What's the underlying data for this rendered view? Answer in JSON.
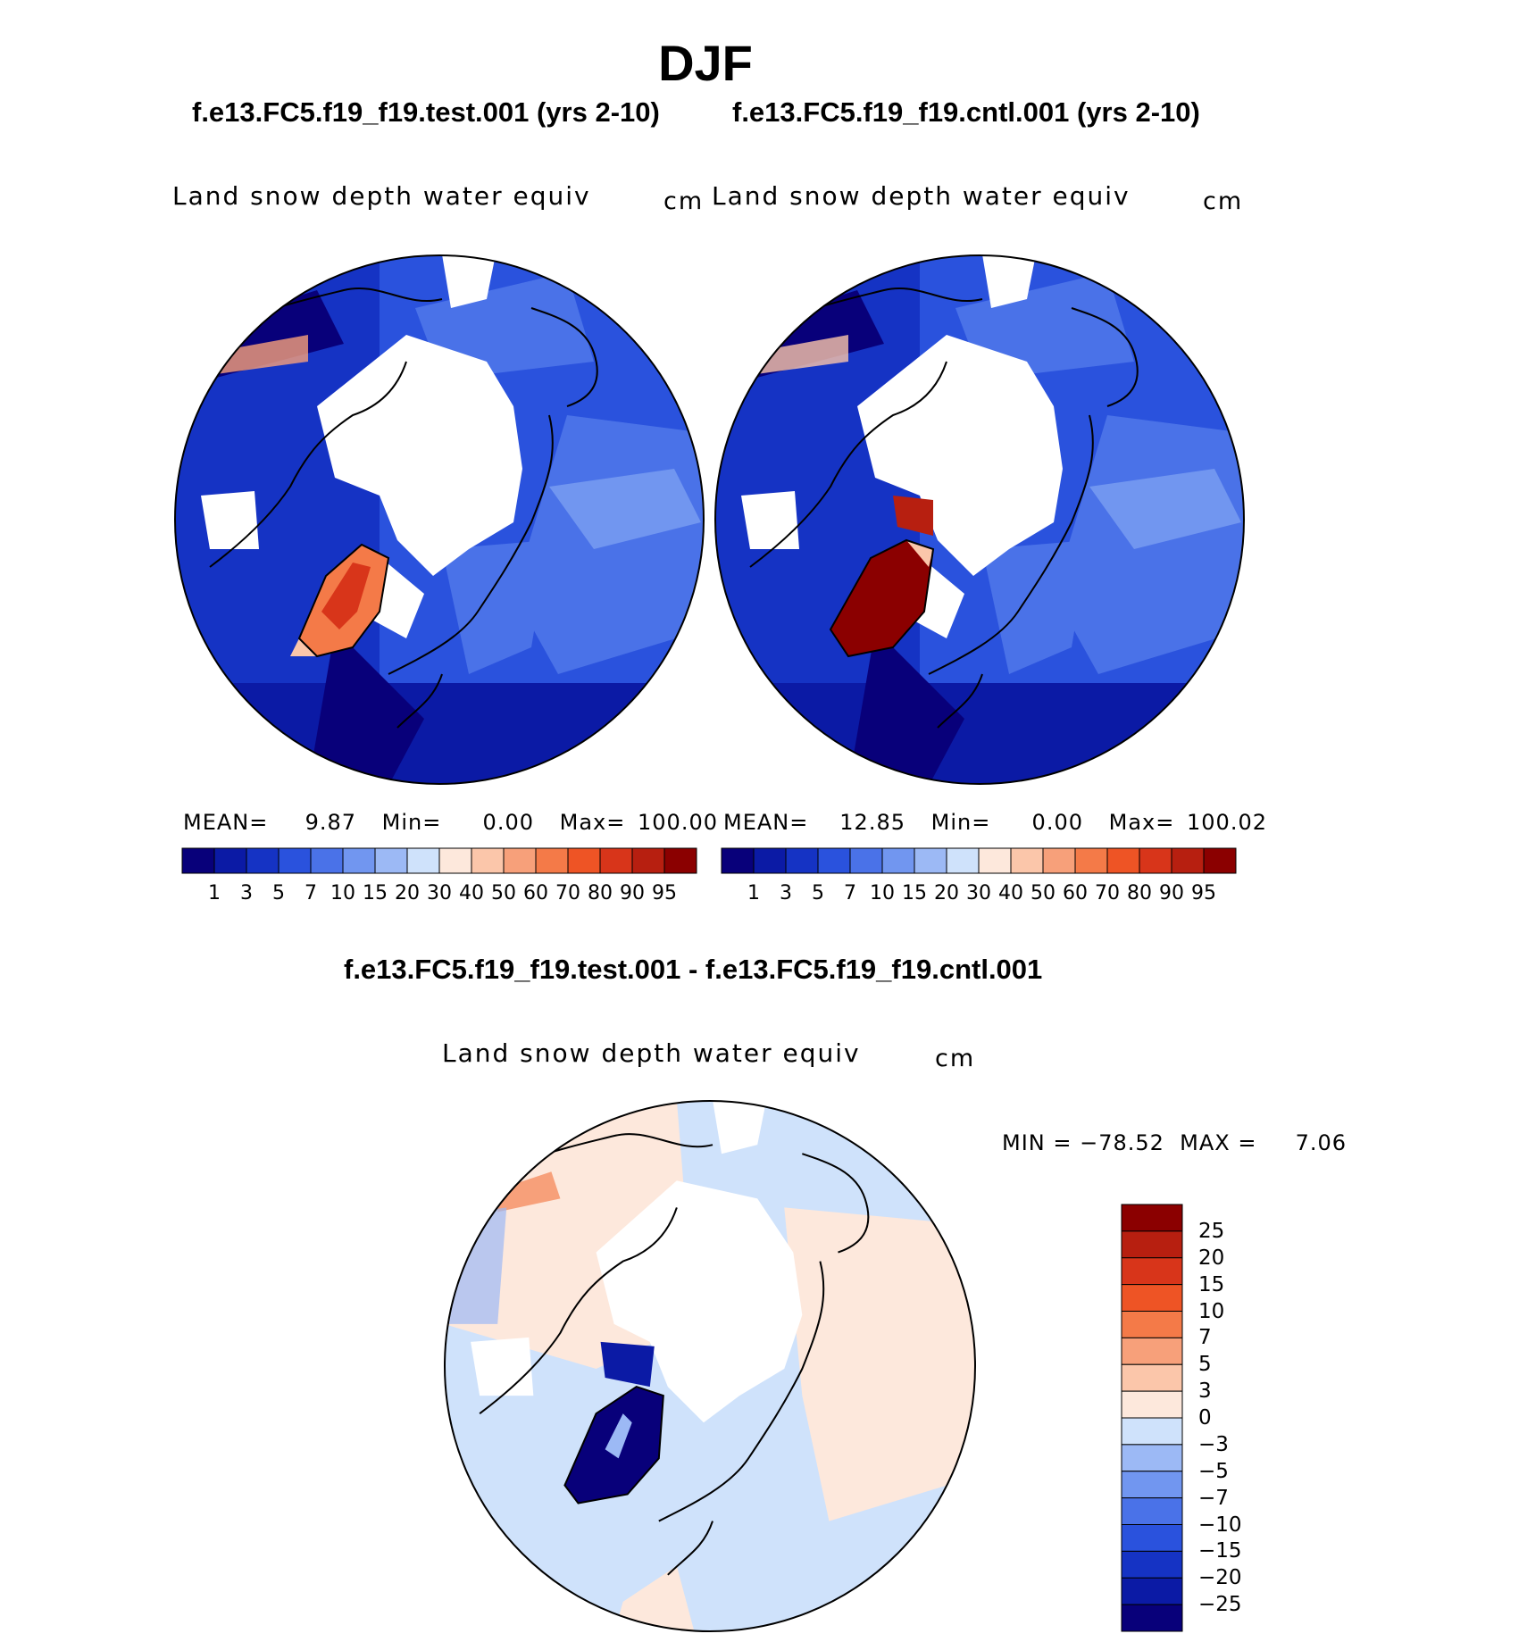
{
  "title": "DJF",
  "panels": [
    {
      "case": "f.e13.FC5.f19_f19.test.001 (yrs 2-10)",
      "variable": "Land snow depth water equiv",
      "units": "cm",
      "stats": {
        "mean_label": "MEAN=",
        "mean": "9.87",
        "min_label": "Min=",
        "min": "0.00",
        "max_label": "Max=",
        "max": "100.00"
      }
    },
    {
      "case": "f.e13.FC5.f19_f19.cntl.001 (yrs 2-10)",
      "variable": "Land snow depth water equiv",
      "units": "cm",
      "stats": {
        "mean_label": "MEAN=",
        "mean": "12.85",
        "min_label": "Min=",
        "min": "0.00",
        "max_label": "Max=",
        "max": "100.02"
      }
    }
  ],
  "abs_colorbar": {
    "colors": [
      "#08007a",
      "#0b1aa5",
      "#1533c4",
      "#2a52dd",
      "#4a72e8",
      "#7196f0",
      "#9cb9f5",
      "#cfe2fb",
      "#fde8dc",
      "#fbc6aa",
      "#f7a07a",
      "#f47a48",
      "#ee5425",
      "#d8351a",
      "#b71f10",
      "#8b0000"
    ],
    "ticks": [
      "1",
      "3",
      "5",
      "7",
      "10",
      "15",
      "20",
      "30",
      "40",
      "50",
      "60",
      "70",
      "80",
      "90",
      "95"
    ]
  },
  "diff": {
    "title": "f.e13.FC5.f19_f19.test.001 - f.e13.FC5.f19_f19.cntl.001",
    "variable": "Land snow depth water equiv",
    "units": "cm",
    "minmax": "MIN = −78.52  MAX =     7.06",
    "colors": [
      "#8b0000",
      "#b71f10",
      "#d8351a",
      "#ee5425",
      "#f47a48",
      "#f7a07a",
      "#fbc6aa",
      "#fde8dc",
      "#cfe2fb",
      "#9cb9f5",
      "#7196f0",
      "#4a72e8",
      "#2a52dd",
      "#1533c4",
      "#0b1aa5",
      "#08007a"
    ],
    "ticks": [
      "25",
      "20",
      "15",
      "10",
      "7",
      "5",
      "3",
      "0",
      "−3",
      "−5",
      "−7",
      "−10",
      "−15",
      "−20",
      "−25"
    ]
  },
  "maps": [
    "test-snow-map",
    "cntl-snow-map",
    "difference-snow-map"
  ]
}
